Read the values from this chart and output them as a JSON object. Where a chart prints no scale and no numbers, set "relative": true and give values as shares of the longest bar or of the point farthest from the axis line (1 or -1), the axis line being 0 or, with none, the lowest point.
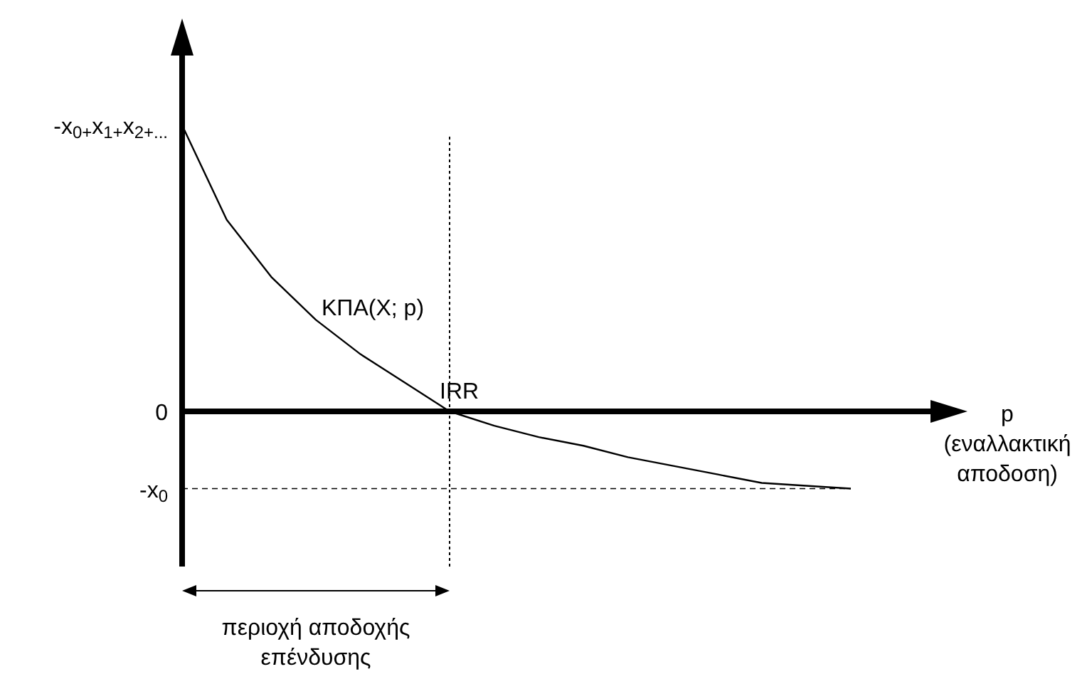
{
  "chart_data": {
    "type": "line",
    "relative": true,
    "categories": [
      null,
      null,
      null,
      null,
      null,
      null,
      null,
      null,
      null,
      null,
      null,
      null,
      null,
      null,
      null,
      null
    ],
    "series": [
      {
        "name": "ΚΠΑ(X; p)",
        "color": "#000000",
        "values": [
          1,
          0.67,
          0.47,
          0.32,
          0.2,
          0.1,
          0,
          -0.05,
          -0.09,
          -0.12,
          -0.16,
          -0.19,
          -0.22,
          -0.25,
          -0.26,
          -0.27
        ]
      }
    ],
    "xlabel": "p (εναλλακτική αποδοση)",
    "ref_lines": [
      {
        "axis": "y",
        "value": -0.27,
        "line_style": "dashed",
        "label": "-x$_{0}$"
      }
    ],
    "annotations": [
      "IRR",
      "περιοχή αποδοχής επένδυσης",
      "-x$_{0+}$x$_{1+}$x$_{2+...}$",
      "0"
    ],
    "line_style": "solid"
  }
}
